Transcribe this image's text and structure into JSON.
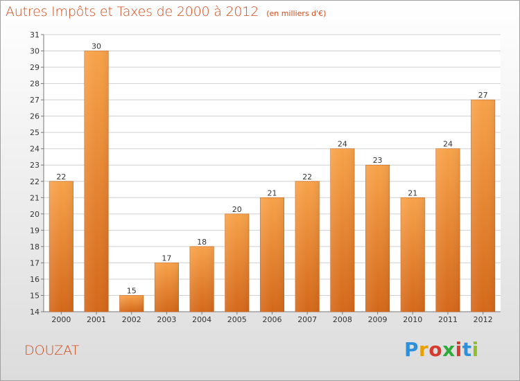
{
  "chart_data": {
    "type": "bar",
    "title": "Autres Impôts et Taxes de 2000 à 2012",
    "subtitle": "(en milliers d'€)",
    "categories": [
      "2000",
      "2001",
      "2002",
      "2003",
      "2004",
      "2005",
      "2006",
      "2007",
      "2008",
      "2009",
      "2010",
      "2011",
      "2012"
    ],
    "values": [
      22,
      30,
      15,
      17,
      18,
      20,
      21,
      22,
      24,
      23,
      21,
      24,
      27
    ],
    "ylim": [
      14,
      31
    ],
    "yticks": [
      14,
      15,
      16,
      17,
      18,
      19,
      20,
      21,
      22,
      23,
      24,
      25,
      26,
      27,
      28,
      29,
      30,
      31
    ],
    "grid": true,
    "bar_color": "#f08a2c"
  },
  "place": "DOUZAT",
  "logo": {
    "text": "Proxiti",
    "letter_colors": [
      "#2f8fd8",
      "#e8a000",
      "#d63a2f",
      "#2faa3a",
      "#d63a2f",
      "#2f8fd8",
      "#8fbf2a"
    ]
  }
}
